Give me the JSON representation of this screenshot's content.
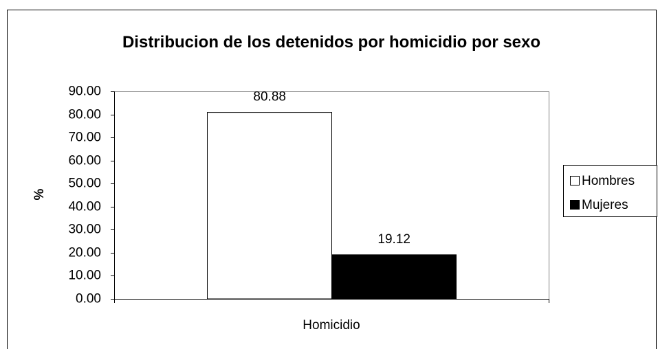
{
  "chart_data": {
    "type": "bar",
    "title": "Distribucion de los detenidos por homicidio por sexo",
    "y_label": "%",
    "categories": [
      "Homicidio"
    ],
    "series": [
      {
        "name": "Hombres",
        "color": "#ffffff",
        "values": [
          80.88
        ]
      },
      {
        "name": "Mujeres",
        "color": "#000000",
        "values": [
          19.12
        ]
      }
    ],
    "ylim": [
      0,
      90
    ],
    "yticks": [
      {
        "value": 0,
        "label": "0.00"
      },
      {
        "value": 10,
        "label": "10.00"
      },
      {
        "value": 20,
        "label": "20.00"
      },
      {
        "value": 30,
        "label": "30.00"
      },
      {
        "value": 40,
        "label": "40.00"
      },
      {
        "value": 50,
        "label": "50.00"
      },
      {
        "value": 60,
        "label": "60.00"
      },
      {
        "value": 70,
        "label": "70.00"
      },
      {
        "value": 80,
        "label": "80.00"
      },
      {
        "value": 90,
        "label": "90.00"
      }
    ],
    "grid": false,
    "legend": "right"
  }
}
